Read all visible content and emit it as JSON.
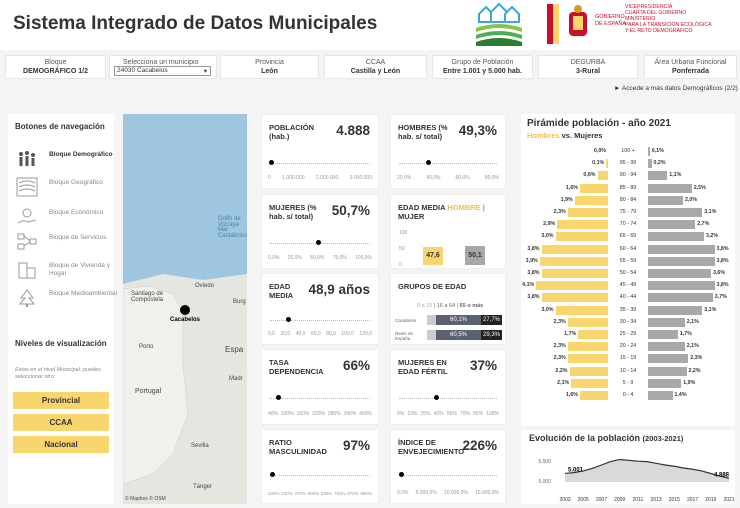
{
  "header": {
    "title": "Sistema Integrado de Datos Municipales",
    "gov_lines": [
      "VICEPRESIDENCIA",
      "CUARTA DEL GOBIERNO",
      "MINISTERIO",
      "PARA LA TRANSICIÓN ECOLÓGICA",
      "Y EL RETO DEMOGRÁFICO"
    ],
    "gov_left": [
      "GOBIERNO",
      "DE ESPAÑA"
    ]
  },
  "filters": [
    {
      "label": "Bloque",
      "value": "DEMOGRÁFICO 1/2"
    },
    {
      "label": "Selecciona un municipio",
      "value": "24030 Cacabelos"
    },
    {
      "label": "Provincia",
      "value": "León"
    },
    {
      "label": "CCAA",
      "value": "Castilla y León"
    },
    {
      "label": "Grupo de Población",
      "value": "Entre 1.001 y 5.000 hab."
    },
    {
      "label": "DEGURBA",
      "value": "3-Rural"
    },
    {
      "label": "Área Urbana Funcional",
      "value": "Ponferrada"
    }
  ],
  "more_link": "► Accede a más datos Demográficos (2/2)",
  "nav": {
    "title": "Botones de navegación",
    "items": [
      "Bloque Demográfico",
      "Bloque Geográfico",
      "Bloque Económico",
      "Bloque de Servicios",
      "Bloque de Vivienda y Hogar",
      "Bloque Medioambiental"
    ],
    "levels_title": "Niveles de visualización",
    "levels_note": "Estas en el nivel Municipal, puedes seleccionar otro:",
    "levels": [
      "Provincial",
      "CCAA",
      "Nacional"
    ]
  },
  "map": {
    "labels": [
      "Santiago de Compostela",
      "Oviedo",
      "Cacabelos",
      "Porto",
      "Portugal",
      "Espa",
      "Sevilla",
      "Tánger",
      "Burg",
      "Madr",
      "Golfo de Vizcaya",
      "Mar Cantábrico"
    ],
    "credit": "© Mapbox © OSM"
  },
  "cards": {
    "poblacion": {
      "title": "POBLACIÓN (hab.)",
      "value": "4.888",
      "axis": [
        "0",
        "1.000.000",
        "2.000.000",
        "3.000.000"
      ]
    },
    "hombres": {
      "title": "HOMBRES (% hab. s/ total)",
      "value": "49,3%",
      "axis": [
        "20,0%",
        "40,0%",
        "60,0%",
        "80,0%"
      ]
    },
    "mujeres": {
      "title": "MUJERES (% hab. s/ total)",
      "value": "50,7%",
      "axis": [
        "0,0%",
        "25,0%",
        "50,0%",
        "75,0%",
        "100,0%"
      ]
    },
    "edad_media_chart": {
      "title": "EDAD MEDIA",
      "hombre": "HOMBRE",
      "sep": " | ",
      "mujer": "MUJER",
      "v_h": "47,6",
      "v_m": "50,1",
      "axis": [
        "100",
        "50",
        "0"
      ]
    },
    "edad_media": {
      "title": "EDAD MEDIA",
      "value": "48,9 años",
      "axis": [
        "0,0",
        "20,0",
        "40,0",
        "60,0",
        "80,0",
        "100,0",
        "120,0"
      ]
    },
    "grupos": {
      "title": "GRUPOS DE EDAD",
      "legend": [
        "0 a 15",
        "16 a 64",
        "65 o más"
      ],
      "rows": [
        {
          "name": "Cacabelos",
          "v1": "60,1%",
          "v2": "27,7%"
        },
        {
          "name": "Resto de España",
          "v1": "60,5%",
          "v2": "29,3%"
        }
      ]
    },
    "tasa": {
      "title": "TASA DEPENDENCIA",
      "value": "66%",
      "axis": [
        "40%",
        "100%",
        "160%",
        "220%",
        "280%",
        "340%",
        "400%"
      ]
    },
    "fertil": {
      "title": "MUJERES EN EDAD FÉRTIL",
      "value": "37%",
      "axis": [
        "0%",
        "10%",
        "25%",
        "40%",
        "55%",
        "70%",
        "85%",
        "100%"
      ]
    },
    "ratio": {
      "title": "RATIO MASCULINIDAD",
      "value": "97%",
      "axis": [
        "120%",
        "240%",
        "370%",
        "500%",
        "620%",
        "750%",
        "870%",
        "990%"
      ]
    },
    "envej": {
      "title": "ÍNDICE DE ENVEJECIMIENTO",
      "value": "226%",
      "axis": [
        "0,0%",
        "5.000,0%",
        "10.000,0%",
        "15.000,0%"
      ]
    }
  },
  "pyramid": {
    "title": "Pirámide población - año 2021",
    "sub_h": "Hombres",
    "sub_vs": " vs. ",
    "sub_m": "Mujeres",
    "rows": [
      {
        "age": "100 +",
        "h": 0.0,
        "m": 0.1,
        "hl": "0,0%",
        "ml": "0,1%"
      },
      {
        "age": "95 - 99",
        "h": 0.1,
        "m": 0.2,
        "hl": "0,1%",
        "ml": "0,2%"
      },
      {
        "age": "90 - 94",
        "h": 0.6,
        "m": 1.1,
        "hl": "0,6%",
        "ml": "1,1%"
      },
      {
        "age": "85 - 89",
        "h": 1.6,
        "m": 2.5,
        "hl": "1,6%",
        "ml": "2,5%"
      },
      {
        "age": "80 - 84",
        "h": 1.9,
        "m": 2.0,
        "hl": "1,9%",
        "ml": "2,0%"
      },
      {
        "age": "75 - 79",
        "h": 2.3,
        "m": 3.1,
        "hl": "2,3%",
        "ml": "3,1%"
      },
      {
        "age": "70 - 74",
        "h": 2.9,
        "m": 2.7,
        "hl": "2,9%",
        "ml": "2,7%"
      },
      {
        "age": "65 - 69",
        "h": 3.0,
        "m": 3.2,
        "hl": "3,0%",
        "ml": "3,2%"
      },
      {
        "age": "60 - 64",
        "h": 3.8,
        "m": 3.8,
        "hl": "3,8%",
        "ml": "3,8%"
      },
      {
        "age": "55 - 59",
        "h": 3.9,
        "m": 3.8,
        "hl": "3,9%",
        "ml": "3,8%"
      },
      {
        "age": "50 - 54",
        "h": 3.8,
        "m": 3.6,
        "hl": "3,8%",
        "ml": "3,6%"
      },
      {
        "age": "45 - 49",
        "h": 4.1,
        "m": 3.8,
        "hl": "4,1%",
        "ml": "3,8%"
      },
      {
        "age": "40 - 44",
        "h": 3.8,
        "m": 3.7,
        "hl": "3,8%",
        "ml": "3,7%"
      },
      {
        "age": "35 - 39",
        "h": 3.0,
        "m": 3.1,
        "hl": "3,0%",
        "ml": "3,1%"
      },
      {
        "age": "30 - 34",
        "h": 2.3,
        "m": 2.1,
        "hl": "2,3%",
        "ml": "2,1%"
      },
      {
        "age": "25 - 29",
        "h": 1.7,
        "m": 1.7,
        "hl": "1,7%",
        "ml": "1,7%"
      },
      {
        "age": "20 - 24",
        "h": 2.3,
        "m": 2.1,
        "hl": "2,3%",
        "ml": "2,1%"
      },
      {
        "age": "15 - 19",
        "h": 2.3,
        "m": 2.3,
        "hl": "2,3%",
        "ml": "2,3%"
      },
      {
        "age": "10 - 14",
        "h": 2.2,
        "m": 2.2,
        "hl": "2,2%",
        "ml": "2,2%"
      },
      {
        "age": "5 - 9",
        "h": 2.1,
        "m": 1.9,
        "hl": "2,1%",
        "ml": "1,9%"
      },
      {
        "age": "0 - 4",
        "h": 1.6,
        "m": 1.4,
        "hl": "1,6%",
        "ml": "1,4%"
      }
    ]
  },
  "evolution": {
    "title": "Evolución de la población",
    "range": "(2003-2021)",
    "years": [
      "2003",
      "2005",
      "2007",
      "2009",
      "2011",
      "2013",
      "2015",
      "2017",
      "2019",
      "2021"
    ],
    "start": "5.001",
    "end": "4.888",
    "yticks": [
      "5.500",
      "5.000"
    ]
  },
  "chart_data": {
    "type": "line",
    "title": "Evolución de la población (2003-2021)",
    "x": [
      2003,
      2004,
      2005,
      2006,
      2007,
      2008,
      2009,
      2010,
      2011,
      2012,
      2013,
      2014,
      2015,
      2016,
      2017,
      2018,
      2019,
      2020,
      2021
    ],
    "values": [
      5001,
      5020,
      5060,
      5120,
      5200,
      5280,
      5330,
      5310,
      5290,
      5280,
      5240,
      5200,
      5170,
      5130,
      5100,
      5060,
      5000,
      4940,
      4888
    ],
    "ylim": [
      4800,
      5600
    ]
  },
  "colors": {
    "hombres": "#f9d56e",
    "mujeres": "#a8a8a8",
    "dark": "#333333"
  }
}
